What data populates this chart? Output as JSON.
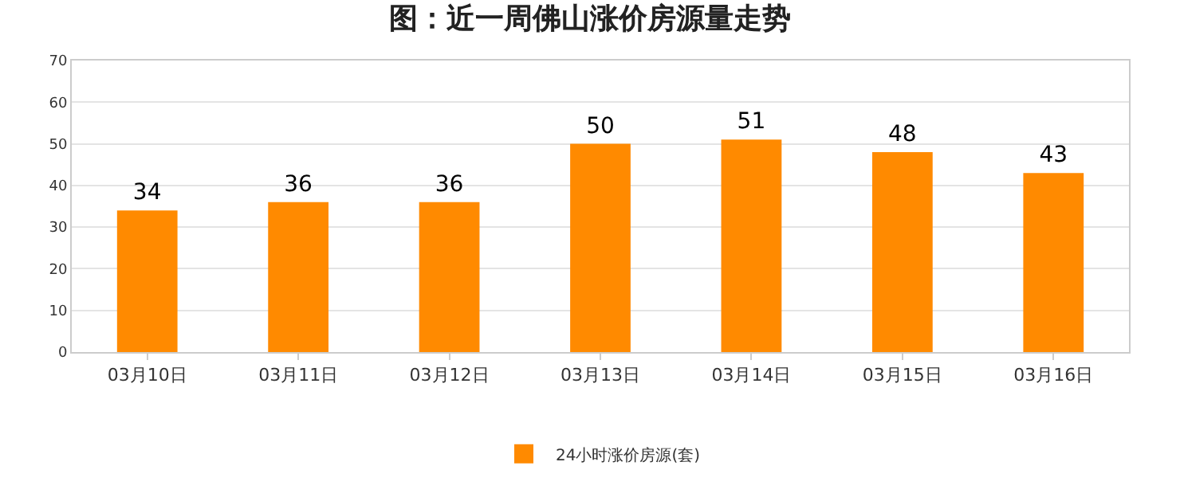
{
  "chart_data": {
    "type": "bar",
    "title": "图：近一周佛山涨价房源量走势",
    "categories": [
      "03月10日",
      "03月11日",
      "03月12日",
      "03月13日",
      "03月14日",
      "03月15日",
      "03月16日"
    ],
    "series": [
      {
        "name": "24小时涨价房源(套)",
        "color": "#ff8a00",
        "values": [
          34,
          36,
          36,
          50,
          51,
          48,
          43
        ]
      }
    ],
    "ylim": [
      0,
      70
    ],
    "yticks": [
      0,
      10,
      20,
      30,
      40,
      50,
      60,
      70
    ],
    "grid": "y",
    "legend": "bottom",
    "data_labels": true
  }
}
